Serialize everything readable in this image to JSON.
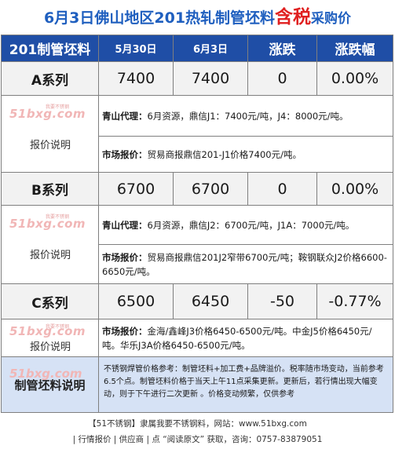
{
  "title": {
    "part1": "6月3日佛山地区201热轧制管坯料",
    "part_red": "含税",
    "part2": "采购价"
  },
  "header": {
    "product": "201制管坯料",
    "date1": "5月30日",
    "date2": "6月3日",
    "change": "涨跌",
    "change_pct": "涨跌幅"
  },
  "watermark": "51bxg.com",
  "watermark_small": "我要不锈钢",
  "note_label": "报价说明",
  "series": [
    {
      "name": "A系列",
      "price1": "7400",
      "price2": "7400",
      "change": "0",
      "change_pct": "0.00%",
      "notes": [
        {
          "key": "青山代理：",
          "text": "6月资源，鼎信J1：7400元/吨，J4：8000元/吨。"
        },
        {
          "key": "市场报价：",
          "text": "贸易商报鼎信201-J1价格7400元/吨。"
        }
      ]
    },
    {
      "name": "B系列",
      "price1": "6700",
      "price2": "6700",
      "change": "0",
      "change_pct": "0.00%",
      "notes": [
        {
          "key": "青山代理：",
          "text": "6月资源，鼎信J2：6700元/吨，J1A：7000元/吨。"
        },
        {
          "key": "市场报价：",
          "text": "贸易商报鼎信201J2窄带6700元/吨；鞍钢联众J2价格6600-6650元/吨。"
        }
      ]
    },
    {
      "name": "C系列",
      "price1": "6500",
      "price2": "6450",
      "change": "-50",
      "change_pct": "-0.77%",
      "notes": [
        {
          "key": "市场报价：",
          "text": "金海/鑫峰J3价格6450-6500元/吨。中金J5价格6450元/吨。华乐J3A价格6450-6500元/吨。"
        }
      ]
    }
  ],
  "explain": {
    "label": "制管坯料说明",
    "text": "不锈钢焊管价格参考：制管坯料+加工费+品牌溢价。税率随市场变动，当前参考6.5个点。制管坯料价格于当天上午11点采集更新。更新后，若行情出现大幅变动，则于下午进行二次更新 。价格变动频繁，仅供参考"
  },
  "footer": {
    "line1": "【51不锈钢】隶属我要不锈钢料，网站：www.51bxg.com",
    "line2": "| 行情报价 | 供应商 | 点 “阅读原文” 获取，咨询：0757-83879051"
  }
}
